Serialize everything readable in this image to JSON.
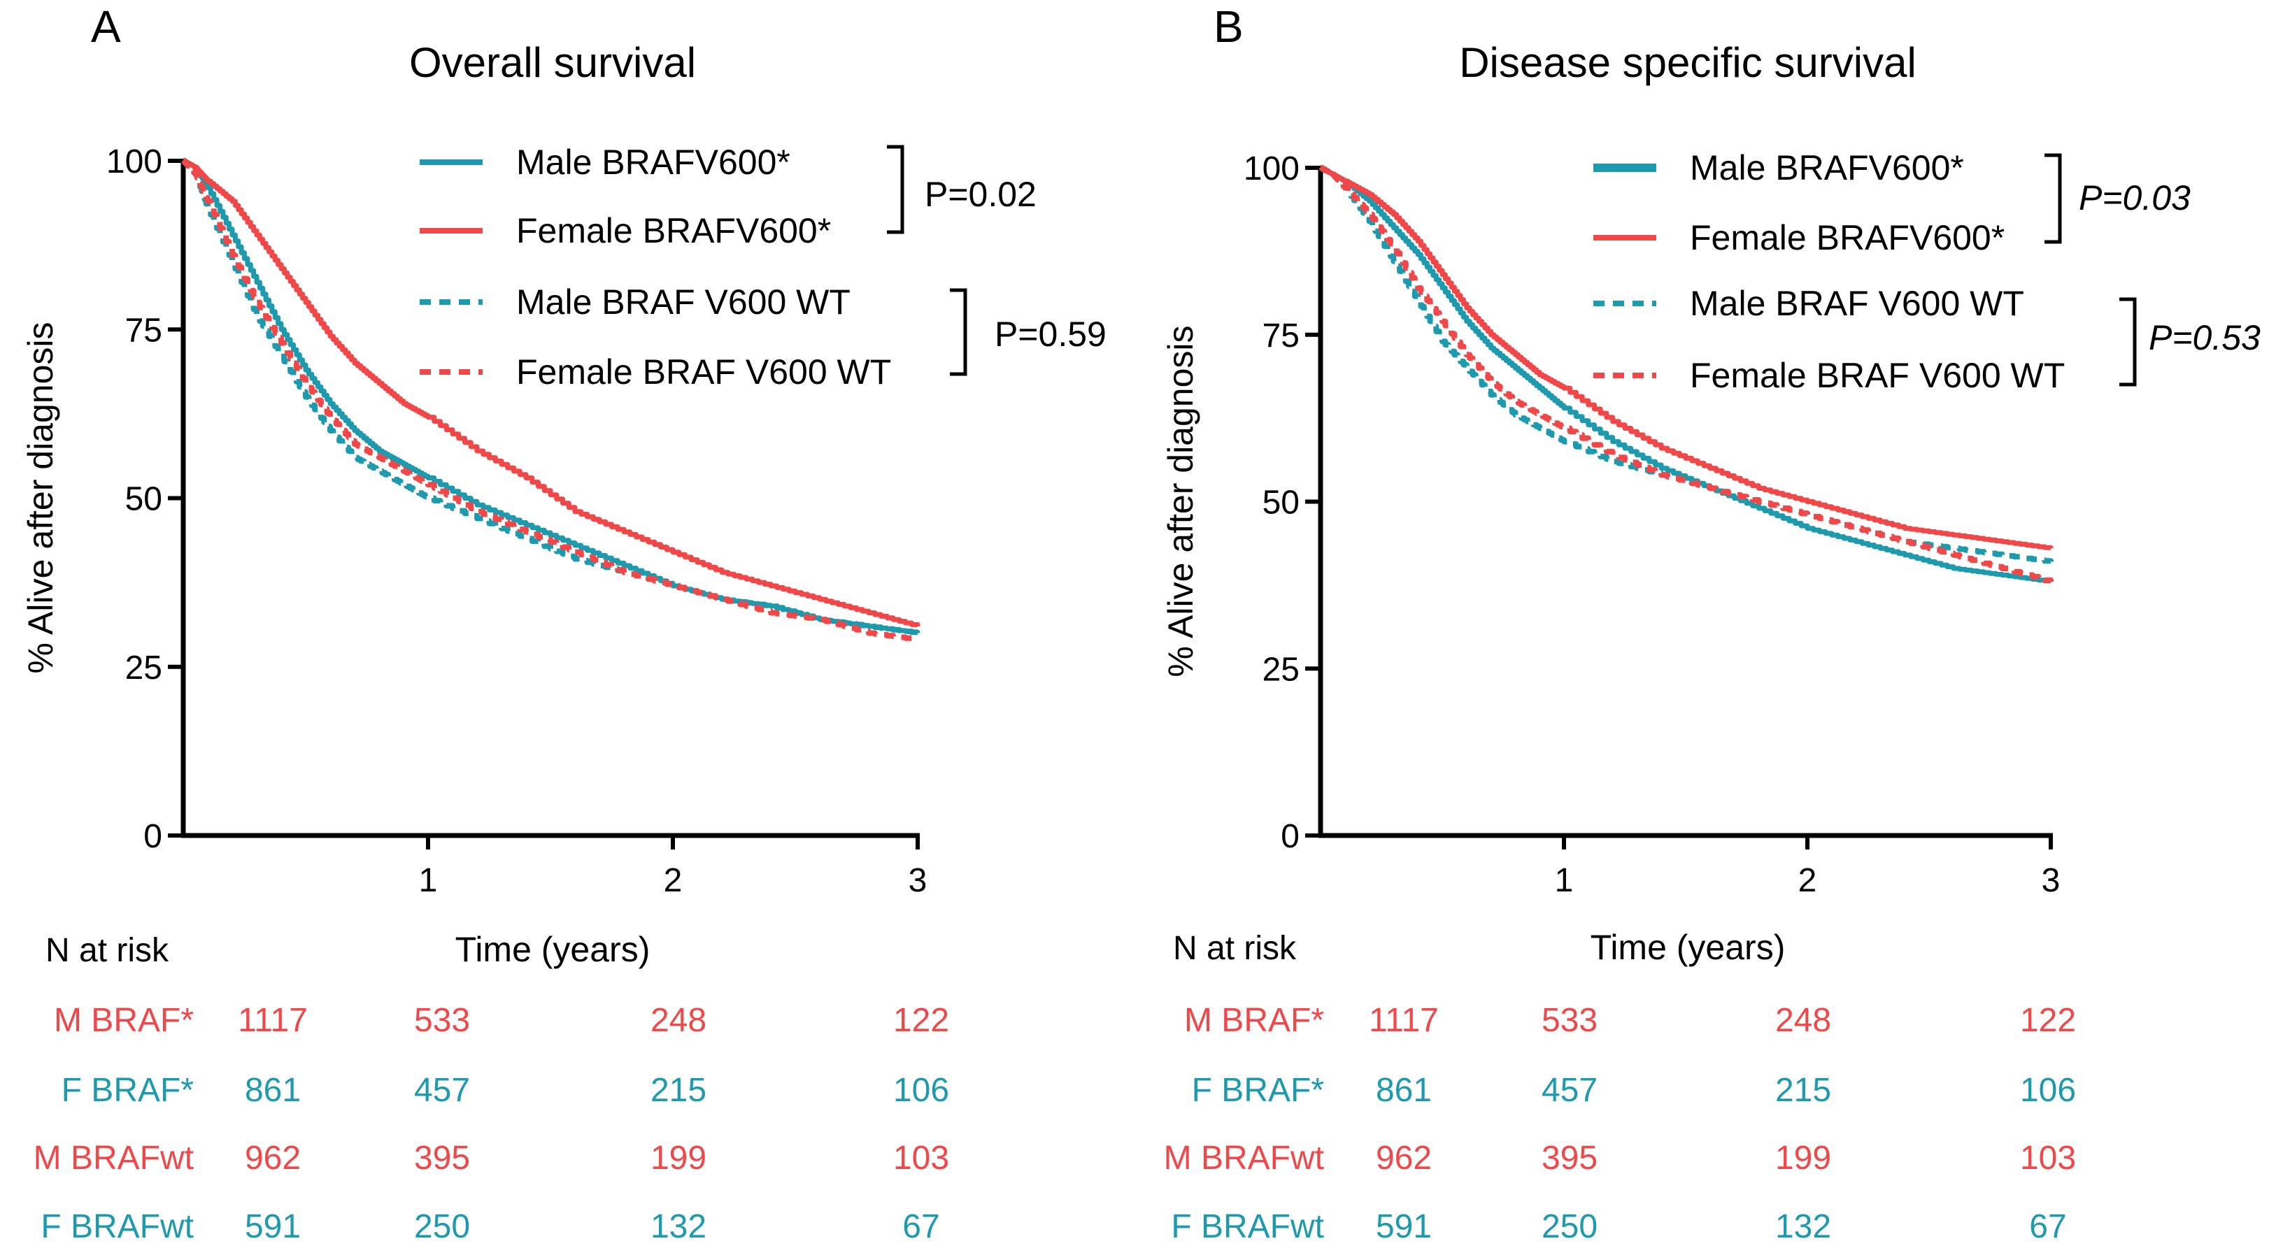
{
  "colors": {
    "teal": "#1E9AAE",
    "red": "#F04848",
    "axis": "#000000",
    "text": "#000000"
  },
  "chart_data": [
    {
      "type": "line",
      "panel_letter": "A",
      "title": "Overall survival",
      "xlabel": "Time (years)",
      "ylabel": "% Alive after diagnosis",
      "xlim": [
        0,
        3
      ],
      "ylim": [
        0,
        100
      ],
      "xticks": [
        1,
        2,
        3
      ],
      "yticks": [
        0,
        25,
        50,
        75,
        100
      ],
      "xtick_labels": [
        "1",
        "2",
        "3"
      ],
      "ytick_labels": [
        "0",
        "25",
        "50",
        "75",
        "100"
      ],
      "grid": false,
      "legend_position": "top-right",
      "series": [
        {
          "name": "Male BRAFV600*",
          "style": "solid",
          "color": "#1E9AAE",
          "x": [
            0,
            0.05,
            0.1,
            0.2,
            0.3,
            0.4,
            0.5,
            0.6,
            0.7,
            0.8,
            0.9,
            1.0,
            1.2,
            1.4,
            1.6,
            1.8,
            2.0,
            2.2,
            2.4,
            2.6,
            2.8,
            3.0
          ],
          "y": [
            100,
            99,
            96,
            89,
            82,
            75,
            69,
            64,
            60,
            57,
            55,
            53,
            49,
            46,
            43,
            40,
            37,
            35,
            34,
            32,
            31,
            30
          ]
        },
        {
          "name": "Female BRAFV600*",
          "style": "solid",
          "color": "#F04848",
          "x": [
            0,
            0.05,
            0.1,
            0.2,
            0.3,
            0.4,
            0.5,
            0.6,
            0.7,
            0.8,
            0.9,
            1.0,
            1.2,
            1.4,
            1.6,
            1.8,
            2.0,
            2.2,
            2.4,
            2.6,
            2.8,
            3.0
          ],
          "y": [
            100,
            99,
            97,
            94,
            89,
            84,
            79,
            74,
            70,
            67,
            64,
            62,
            57,
            53,
            48,
            45,
            42,
            39,
            37,
            35,
            33,
            31
          ]
        },
        {
          "name": "Male BRAF V600 WT",
          "style": "dashed",
          "color": "#1E9AAE",
          "x": [
            0,
            0.05,
            0.1,
            0.2,
            0.3,
            0.4,
            0.5,
            0.6,
            0.7,
            0.8,
            0.9,
            1.0,
            1.2,
            1.4,
            1.6,
            1.8,
            2.0,
            2.2,
            2.4,
            2.6,
            2.8,
            3.0
          ],
          "y": [
            100,
            98,
            93,
            85,
            77,
            71,
            65,
            60,
            56,
            54,
            52,
            50,
            47,
            44,
            41,
            39,
            37,
            35,
            34,
            32,
            31,
            30
          ]
        },
        {
          "name": "Female BRAF V600 WT",
          "style": "dashed",
          "color": "#F04848",
          "x": [
            0,
            0.05,
            0.1,
            0.2,
            0.3,
            0.4,
            0.5,
            0.6,
            0.7,
            0.8,
            0.9,
            1.0,
            1.2,
            1.4,
            1.6,
            1.8,
            2.0,
            2.2,
            2.4,
            2.6,
            2.8,
            3.0
          ],
          "y": [
            100,
            98,
            94,
            86,
            79,
            73,
            67,
            62,
            58,
            56,
            54,
            52,
            48,
            45,
            42,
            39,
            37,
            35,
            33,
            32,
            30,
            29
          ]
        }
      ],
      "brackets": [
        {
          "label": "P=0.02",
          "italic": false
        },
        {
          "label": "P=0.59",
          "italic": false
        }
      ],
      "risk_table": {
        "header": "N at risk",
        "rows": [
          {
            "label": "M BRAF*",
            "color": "#F04848",
            "values": [
              "1117",
              "533",
              "248",
              "122"
            ]
          },
          {
            "label": "F BRAF*",
            "color": "#1E9AAE",
            "values": [
              "861",
              "457",
              "215",
              "106"
            ]
          },
          {
            "label": "M BRAFwt",
            "color": "#F04848",
            "values": [
              "962",
              "395",
              "199",
              "103"
            ]
          },
          {
            "label": "F BRAFwt",
            "color": "#1E9AAE",
            "values": [
              "591",
              "250",
              "132",
              "67"
            ]
          }
        ]
      }
    },
    {
      "type": "line",
      "panel_letter": "B",
      "title": "Disease specific survival",
      "xlabel": "Time (years)",
      "ylabel": "% Alive after diagnosis",
      "xlim": [
        0,
        3
      ],
      "ylim": [
        0,
        100
      ],
      "xticks": [
        1,
        2,
        3
      ],
      "yticks": [
        0,
        25,
        50,
        75,
        100
      ],
      "xtick_labels": [
        "1",
        "2",
        "3"
      ],
      "ytick_labels": [
        "0",
        "25",
        "50",
        "75",
        "100"
      ],
      "grid": false,
      "legend_position": "top-right",
      "series": [
        {
          "name": "Male BRAFV600*",
          "style": "solid",
          "color": "#1E9AAE",
          "x": [
            0,
            0.05,
            0.1,
            0.2,
            0.3,
            0.4,
            0.5,
            0.6,
            0.7,
            0.8,
            0.9,
            1.0,
            1.2,
            1.4,
            1.6,
            1.8,
            2.0,
            2.2,
            2.4,
            2.6,
            2.8,
            3.0
          ],
          "y": [
            100,
            99,
            98,
            95,
            91,
            87,
            82,
            77,
            73,
            70,
            67,
            64,
            59,
            55,
            52,
            49,
            46,
            44,
            42,
            40,
            39,
            38
          ]
        },
        {
          "name": "Female BRAFV600*",
          "style": "solid",
          "color": "#F04848",
          "x": [
            0,
            0.05,
            0.1,
            0.2,
            0.3,
            0.4,
            0.5,
            0.6,
            0.7,
            0.8,
            0.9,
            1.0,
            1.2,
            1.4,
            1.6,
            1.8,
            2.0,
            2.2,
            2.4,
            2.6,
            2.8,
            3.0
          ],
          "y": [
            100,
            99,
            98,
            96,
            93,
            89,
            84,
            79,
            75,
            72,
            69,
            67,
            62,
            58,
            55,
            52,
            50,
            48,
            46,
            45,
            44,
            43
          ]
        },
        {
          "name": "Male BRAF V600 WT",
          "style": "dashed",
          "color": "#1E9AAE",
          "x": [
            0,
            0.05,
            0.1,
            0.2,
            0.3,
            0.4,
            0.5,
            0.6,
            0.7,
            0.8,
            0.9,
            1.0,
            1.2,
            1.4,
            1.6,
            1.8,
            2.0,
            2.2,
            2.4,
            2.6,
            2.8,
            3.0
          ],
          "y": [
            100,
            99,
            97,
            92,
            86,
            80,
            74,
            70,
            66,
            63,
            61,
            59,
            56,
            54,
            52,
            50,
            48,
            46,
            44,
            43,
            42,
            41
          ]
        },
        {
          "name": "Female BRAF V600 WT",
          "style": "dashed",
          "color": "#F04848",
          "x": [
            0,
            0.05,
            0.1,
            0.2,
            0.3,
            0.4,
            0.5,
            0.6,
            0.7,
            0.8,
            0.9,
            1.0,
            1.2,
            1.4,
            1.6,
            1.8,
            2.0,
            2.2,
            2.4,
            2.6,
            2.8,
            3.0
          ],
          "y": [
            100,
            99,
            97,
            93,
            88,
            82,
            77,
            72,
            68,
            65,
            63,
            61,
            57,
            54,
            52,
            50,
            48,
            46,
            44,
            42,
            40,
            38
          ]
        }
      ],
      "brackets": [
        {
          "label": "P=0.03",
          "italic": true
        },
        {
          "label": "P=0.53",
          "italic": true
        }
      ],
      "risk_table": {
        "header": "N at risk",
        "rows": [
          {
            "label": "M BRAF*",
            "color": "#F04848",
            "values": [
              "1117",
              "533",
              "248",
              "122"
            ]
          },
          {
            "label": "F BRAF*",
            "color": "#1E9AAE",
            "values": [
              "861",
              "457",
              "215",
              "106"
            ]
          },
          {
            "label": "M BRAFwt",
            "color": "#F04848",
            "values": [
              "962",
              "395",
              "199",
              "103"
            ]
          },
          {
            "label": "F BRAFwt",
            "color": "#1E9AAE",
            "values": [
              "591",
              "250",
              "132",
              "67"
            ]
          }
        ]
      }
    }
  ]
}
